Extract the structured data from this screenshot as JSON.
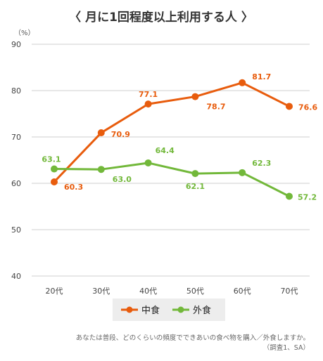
{
  "chart_data": {
    "type": "line",
    "title": "〈 月に1回程度以上利用する人 〉",
    "unit_label": "（%）",
    "categories": [
      "20代",
      "30代",
      "40代",
      "50代",
      "60代",
      "70代"
    ],
    "ylim": [
      40,
      90
    ],
    "yticks": [
      40,
      50,
      60,
      70,
      80,
      90
    ],
    "grid": true,
    "legend_position": "bottom-center",
    "series": [
      {
        "name": "中食",
        "color": "#e85c0d",
        "values": [
          60.3,
          70.9,
          77.1,
          78.7,
          81.7,
          76.6
        ],
        "labels": [
          "60.3",
          "70.9",
          "77.1",
          "78.7",
          "81.7",
          "76.6"
        ]
      },
      {
        "name": "外食",
        "color": "#72b83a",
        "values": [
          63.1,
          63.0,
          64.4,
          62.1,
          62.3,
          57.2
        ],
        "labels": [
          "63.1",
          "63.0",
          "64.4",
          "62.1",
          "62.3",
          "57.2"
        ]
      }
    ],
    "note_line1": "あなたは普段、どのくらいの頻度でできあいの食べ物を購入／外食しますか。",
    "note_line2": "（調査1、SA）"
  }
}
